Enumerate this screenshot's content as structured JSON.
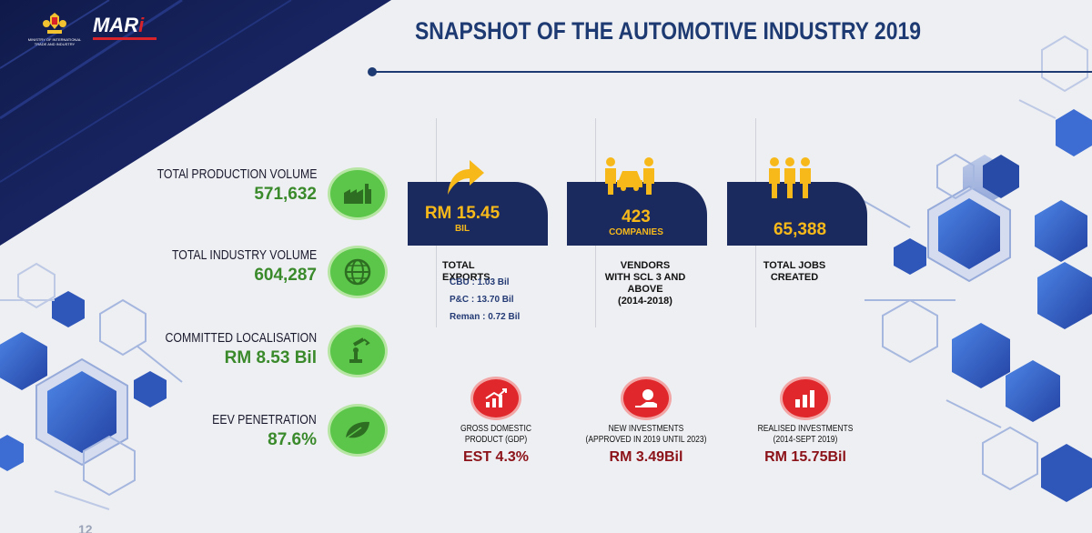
{
  "header": {
    "title": "SNAPSHOT OF THE AUTOMOTIVE INDUSTRY 2019",
    "logo_ministry": "MINISTRY OF INTERNATIONAL TRADE AND INDUSTRY",
    "logo_mari": "MARi"
  },
  "left_stats": [
    {
      "label": "TOTAl PRODUCTION VOLUME",
      "value": "571,632",
      "icon": "factory-icon"
    },
    {
      "label": "TOTAL INDUSTRY VOLUME",
      "value": "604,287",
      "icon": "globe-icon"
    },
    {
      "label": "COMMITTED LOCALISATION",
      "value": "RM 8.53 Bil",
      "icon": "robot-arm-icon"
    },
    {
      "label": "EEV PENETRATION",
      "value": "87.6%",
      "icon": "leaf-icon"
    }
  ],
  "tiles": [
    {
      "value": "RM 15.45",
      "sub": "BIL",
      "caption": "TOTAL EXPORTS",
      "icon": "arrow-up-icon",
      "breakdown": [
        "CBU : 1.03 Bil",
        "P&C : 13.70 Bil",
        "Reman : 0.72 Bil"
      ]
    },
    {
      "value": "423",
      "sub": "COMPANIES",
      "caption": [
        "VENDORS",
        "WITH SCL 3 AND",
        "ABOVE",
        "(2014-2018)"
      ],
      "icon": "vendors-car-icon"
    },
    {
      "value": "65,388",
      "sub": "",
      "caption": [
        "TOTAL JOBS",
        "CREATED"
      ],
      "icon": "workers-icon"
    }
  ],
  "lower": [
    {
      "caption": [
        "GROSS DOMESTIC",
        "PRODUCT (GDP)"
      ],
      "value": "EST 4.3%",
      "icon": "growth-chart-icon"
    },
    {
      "caption": [
        "NEW INVESTMENTS",
        "(APPROVED IN 2019 UNTIL 2023)"
      ],
      "value": "RM 3.49Bil",
      "icon": "money-hand-icon"
    },
    {
      "caption": [
        "REALISED INVESTMENTS",
        "(2014-SEPT 2019)"
      ],
      "value": "RM 15.75Bil",
      "icon": "bar-chart-icon"
    }
  ],
  "footer": {
    "page_number": "12"
  },
  "colors": {
    "navy": "#1e3a72",
    "green_value": "#3a8a2c",
    "green_icon": "#5bc649",
    "gold": "#f7b91a",
    "red": "#e0272b",
    "dark_red_value": "#8b1218"
  }
}
